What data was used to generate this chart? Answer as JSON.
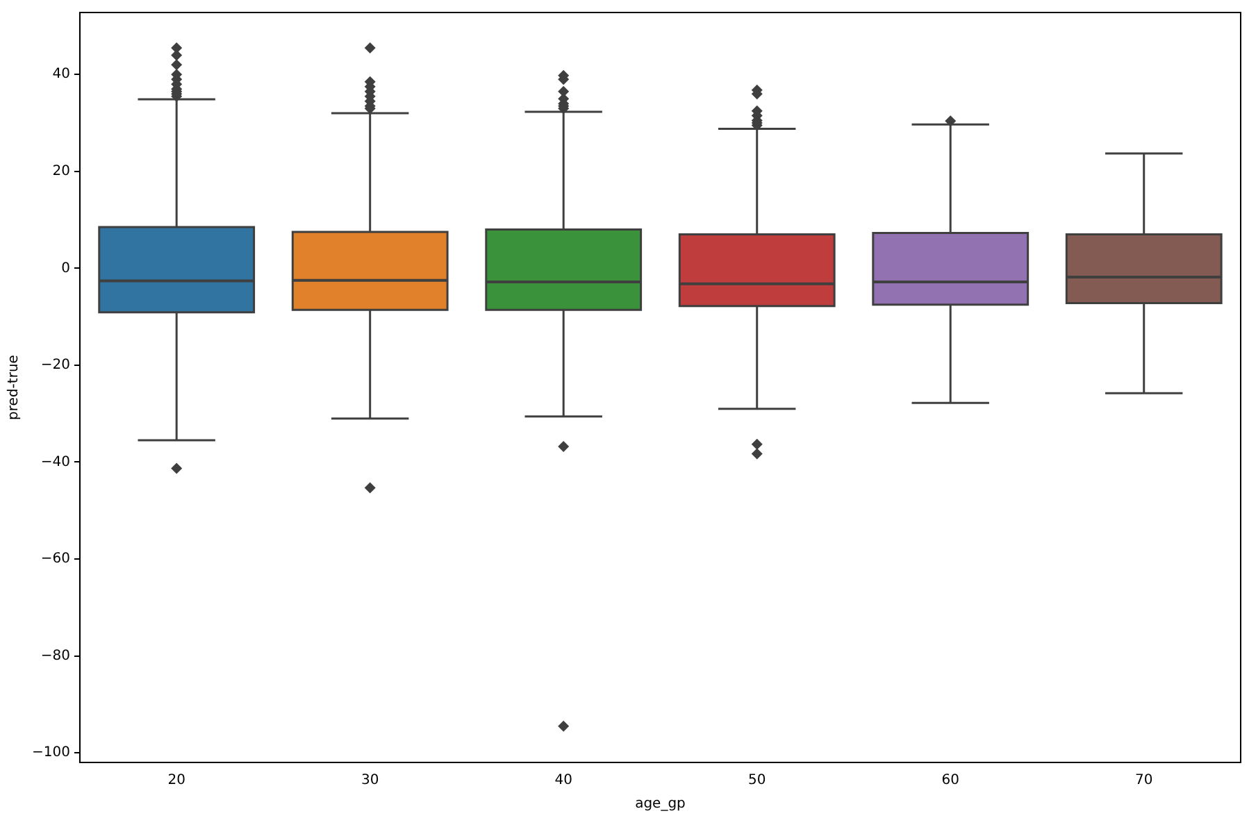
{
  "chart_data": {
    "type": "box",
    "xlabel": "age_gp",
    "ylabel": "pred-true",
    "categories": [
      "20",
      "30",
      "40",
      "50",
      "60",
      "70"
    ],
    "colors": [
      "#3274a1",
      "#e1812c",
      "#3a923a",
      "#c03d3e",
      "#9372b2",
      "#845b53"
    ],
    "boxes": [
      {
        "low": -35.5,
        "q1": -9.1,
        "median": -2.6,
        "q3": 8.5,
        "high": 34.9,
        "outliers": [
          45.5,
          44,
          42,
          40,
          39,
          38,
          37,
          36.5,
          36,
          35.5,
          -41.3
        ]
      },
      {
        "low": -31,
        "q1": -8.6,
        "median": -2.5,
        "q3": 7.5,
        "high": 32,
        "outliers": [
          45.5,
          38.5,
          37.5,
          36.5,
          35.5,
          34.5,
          33.5,
          33,
          -45.3
        ]
      },
      {
        "low": -30.6,
        "q1": -8.6,
        "median": -2.8,
        "q3": 8,
        "high": 32.3,
        "outliers": [
          39.8,
          39,
          36.5,
          35,
          34,
          33.5,
          33,
          -36.8,
          -94.5
        ]
      },
      {
        "low": -29,
        "q1": -7.8,
        "median": -3.2,
        "q3": 7,
        "high": 28.8,
        "outliers": [
          36.8,
          36,
          32.5,
          31.5,
          30.5,
          30,
          29.5,
          -36.3,
          -38.3
        ]
      },
      {
        "low": -27.8,
        "q1": -7.5,
        "median": -2.8,
        "q3": 7.3,
        "high": 29.7,
        "outliers": [
          30.4
        ]
      },
      {
        "low": -25.8,
        "q1": -7.2,
        "median": -1.8,
        "q3": 7,
        "high": 23.7
      }
    ],
    "ylim": [
      -102,
      52.8
    ],
    "yticks": [
      {
        "value": -100,
        "label": "−100"
      },
      {
        "value": -80,
        "label": "−80"
      },
      {
        "value": -60,
        "label": "−60"
      },
      {
        "value": -40,
        "label": "−40"
      },
      {
        "value": -20,
        "label": "−20"
      },
      0,
      20,
      40
    ],
    "grid": false,
    "legend": false,
    "marker": "diamond"
  }
}
